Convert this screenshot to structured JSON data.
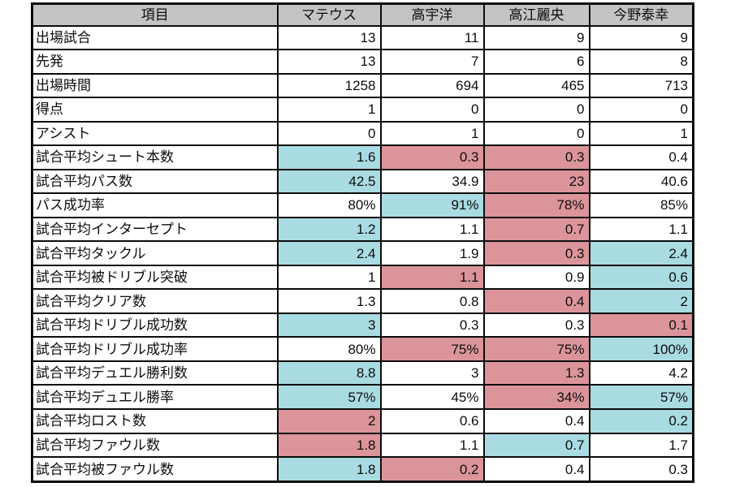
{
  "colors": {
    "header_bg": "#c4c4c4",
    "best_bg": "#a9dbe3",
    "worst_bg": "#dc949b",
    "border": "#0c0c0c",
    "page_bg": "#ffffff",
    "text": "#0d0d0d"
  },
  "chart_data": {
    "type": "table",
    "title": "",
    "columns": [
      "項目",
      "マテウス",
      "高宇洋",
      "高江麗央",
      "今野泰幸"
    ],
    "highlight_meaning": {
      "best": "light-blue cell",
      "worst": "pink cell"
    },
    "rows": [
      {
        "label": "出場試合",
        "values": [
          "13",
          "11",
          "9",
          "9"
        ],
        "highlights": [
          "",
          "",
          "",
          ""
        ]
      },
      {
        "label": "先発",
        "values": [
          "13",
          "7",
          "6",
          "8"
        ],
        "highlights": [
          "",
          "",
          "",
          ""
        ]
      },
      {
        "label": "出場時間",
        "values": [
          "1258",
          "694",
          "465",
          "713"
        ],
        "highlights": [
          "",
          "",
          "",
          ""
        ]
      },
      {
        "label": "得点",
        "values": [
          "1",
          "0",
          "0",
          "0"
        ],
        "highlights": [
          "",
          "",
          "",
          ""
        ]
      },
      {
        "label": "アシスト",
        "values": [
          "0",
          "1",
          "0",
          "1"
        ],
        "highlights": [
          "",
          "",
          "",
          ""
        ]
      },
      {
        "label": "試合平均シュート本数",
        "values": [
          "1.6",
          "0.3",
          "0.3",
          "0.4"
        ],
        "highlights": [
          "best",
          "worst",
          "worst",
          ""
        ]
      },
      {
        "label": "試合平均パス数",
        "values": [
          "42.5",
          "34.9",
          "23",
          "40.6"
        ],
        "highlights": [
          "best",
          "",
          "worst",
          ""
        ]
      },
      {
        "label": "パス成功率",
        "values": [
          "80%",
          "91%",
          "78%",
          "85%"
        ],
        "highlights": [
          "",
          "best",
          "worst",
          ""
        ]
      },
      {
        "label": "試合平均インターセプト",
        "values": [
          "1.2",
          "1.1",
          "0.7",
          "1.1"
        ],
        "highlights": [
          "best",
          "",
          "worst",
          ""
        ]
      },
      {
        "label": "試合平均タックル",
        "values": [
          "2.4",
          "1.9",
          "0.3",
          "2.4"
        ],
        "highlights": [
          "best",
          "",
          "worst",
          "best"
        ]
      },
      {
        "label": "試合平均被ドリブル突破",
        "values": [
          "1",
          "1.1",
          "0.9",
          "0.6"
        ],
        "highlights": [
          "",
          "worst",
          "",
          "best"
        ]
      },
      {
        "label": "試合平均クリア数",
        "values": [
          "1.3",
          "0.8",
          "0.4",
          "2"
        ],
        "highlights": [
          "",
          "",
          "worst",
          "best"
        ]
      },
      {
        "label": "試合平均ドリブル成功数",
        "values": [
          "3",
          "0.3",
          "0.3",
          "0.1"
        ],
        "highlights": [
          "best",
          "",
          "",
          "worst"
        ]
      },
      {
        "label": "試合平均ドリブル成功率",
        "values": [
          "80%",
          "75%",
          "75%",
          "100%"
        ],
        "highlights": [
          "",
          "worst",
          "worst",
          "best"
        ]
      },
      {
        "label": "試合平均デュエル勝利数",
        "values": [
          "8.8",
          "3",
          "1.3",
          "4.2"
        ],
        "highlights": [
          "best",
          "",
          "worst",
          ""
        ]
      },
      {
        "label": "試合平均デュエル勝率",
        "values": [
          "57%",
          "45%",
          "34%",
          "57%"
        ],
        "highlights": [
          "best",
          "",
          "worst",
          "best"
        ]
      },
      {
        "label": "試合平均ロスト数",
        "values": [
          "2",
          "0.6",
          "0.4",
          "0.2"
        ],
        "highlights": [
          "worst",
          "",
          "",
          "best"
        ]
      },
      {
        "label": "試合平均ファウル数",
        "values": [
          "1.8",
          "1.1",
          "0.7",
          "1.7"
        ],
        "highlights": [
          "worst",
          "",
          "best",
          ""
        ]
      },
      {
        "label": "試合平均被ファウル数",
        "values": [
          "1.8",
          "0.2",
          "0.4",
          "0.3"
        ],
        "highlights": [
          "best",
          "worst",
          "",
          ""
        ]
      }
    ]
  }
}
